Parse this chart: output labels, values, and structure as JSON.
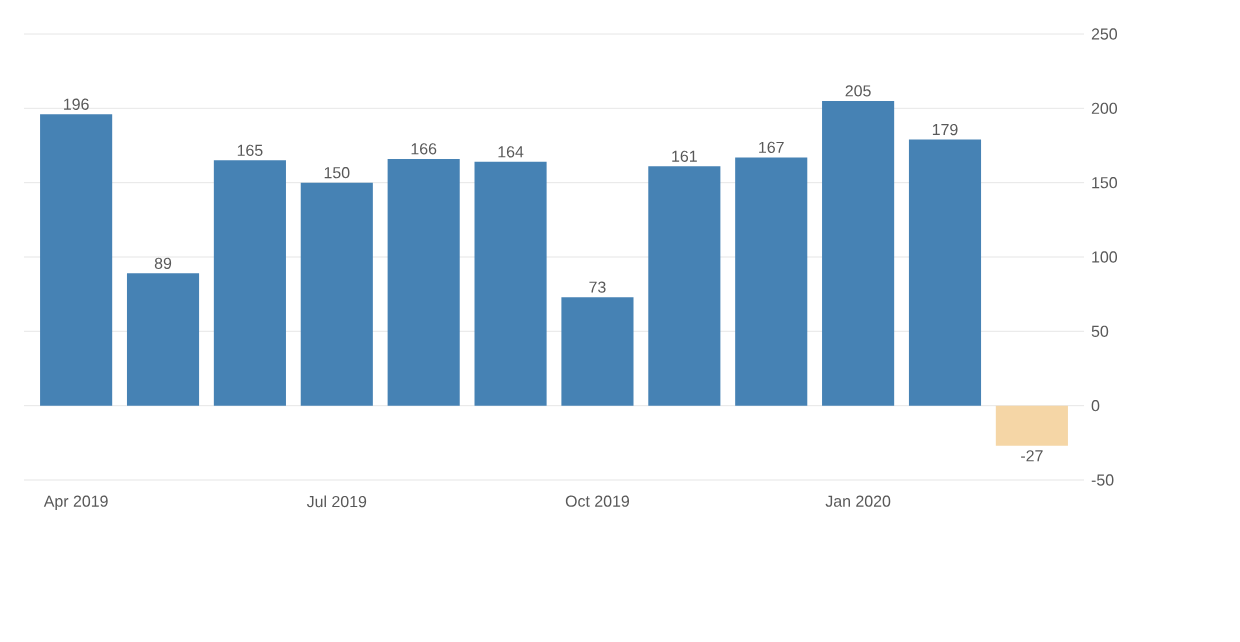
{
  "chart_data": {
    "type": "bar",
    "categories": [
      "Apr 2019",
      null,
      null,
      "Jul 2019",
      null,
      null,
      "Oct 2019",
      null,
      null,
      "Jan 2020",
      null,
      null
    ],
    "values": [
      196,
      89,
      165,
      150,
      166,
      164,
      73,
      161,
      167,
      205,
      179,
      -27
    ],
    "colors": [
      "#4682b4",
      "#4682b4",
      "#4682b4",
      "#4682b4",
      "#4682b4",
      "#4682b4",
      "#4682b4",
      "#4682b4",
      "#4682b4",
      "#4682b4",
      "#4682b4",
      "#f5d6a6"
    ],
    "ylim": [
      -50,
      250
    ],
    "yticks": [
      -50,
      0,
      50,
      100,
      150,
      200,
      250
    ],
    "grid": "y",
    "data_labels": true
  }
}
